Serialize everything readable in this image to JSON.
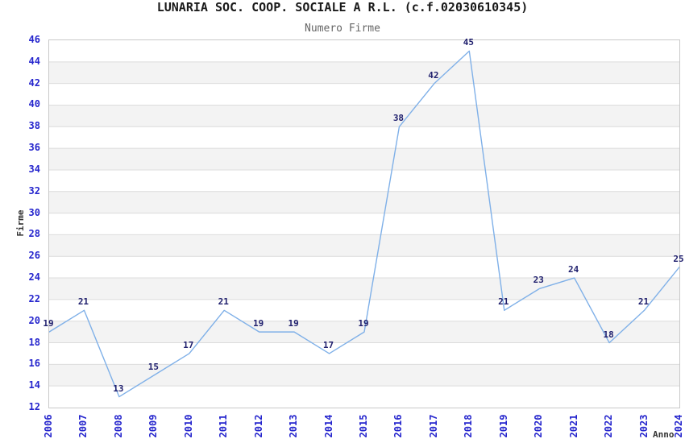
{
  "header": {
    "title": "LUNARIA SOC. COOP. SOCIALE A R.L. (c.f.02030610345)",
    "subtitle": "Numero Firme"
  },
  "chart_data": {
    "type": "line",
    "title": "LUNARIA SOC. COOP. SOCIALE A R.L. (c.f.02030610345)",
    "subtitle": "Numero Firme",
    "xlabel": "Anno",
    "ylabel": "Firme",
    "x": [
      2006,
      2007,
      2008,
      2009,
      2010,
      2011,
      2012,
      2013,
      2014,
      2015,
      2016,
      2017,
      2018,
      2019,
      2020,
      2021,
      2022,
      2023,
      2024
    ],
    "values": [
      19,
      21,
      13,
      15,
      17,
      21,
      19,
      19,
      17,
      19,
      38,
      42,
      45,
      21,
      23,
      24,
      18,
      21,
      25
    ],
    "ylim": [
      12,
      46
    ],
    "ytick_step": 2,
    "grid": true,
    "legend": "none",
    "colors": {
      "line": "#7fb0e8",
      "tick_label": "#2525cd",
      "point_label": "#20206e",
      "band": "#f3f3f3",
      "gridline": "#dcdcdc",
      "border": "#c9c9c9",
      "title": "#1a1a1a",
      "subtitle": "#666666",
      "axis_title": "#333333"
    }
  }
}
